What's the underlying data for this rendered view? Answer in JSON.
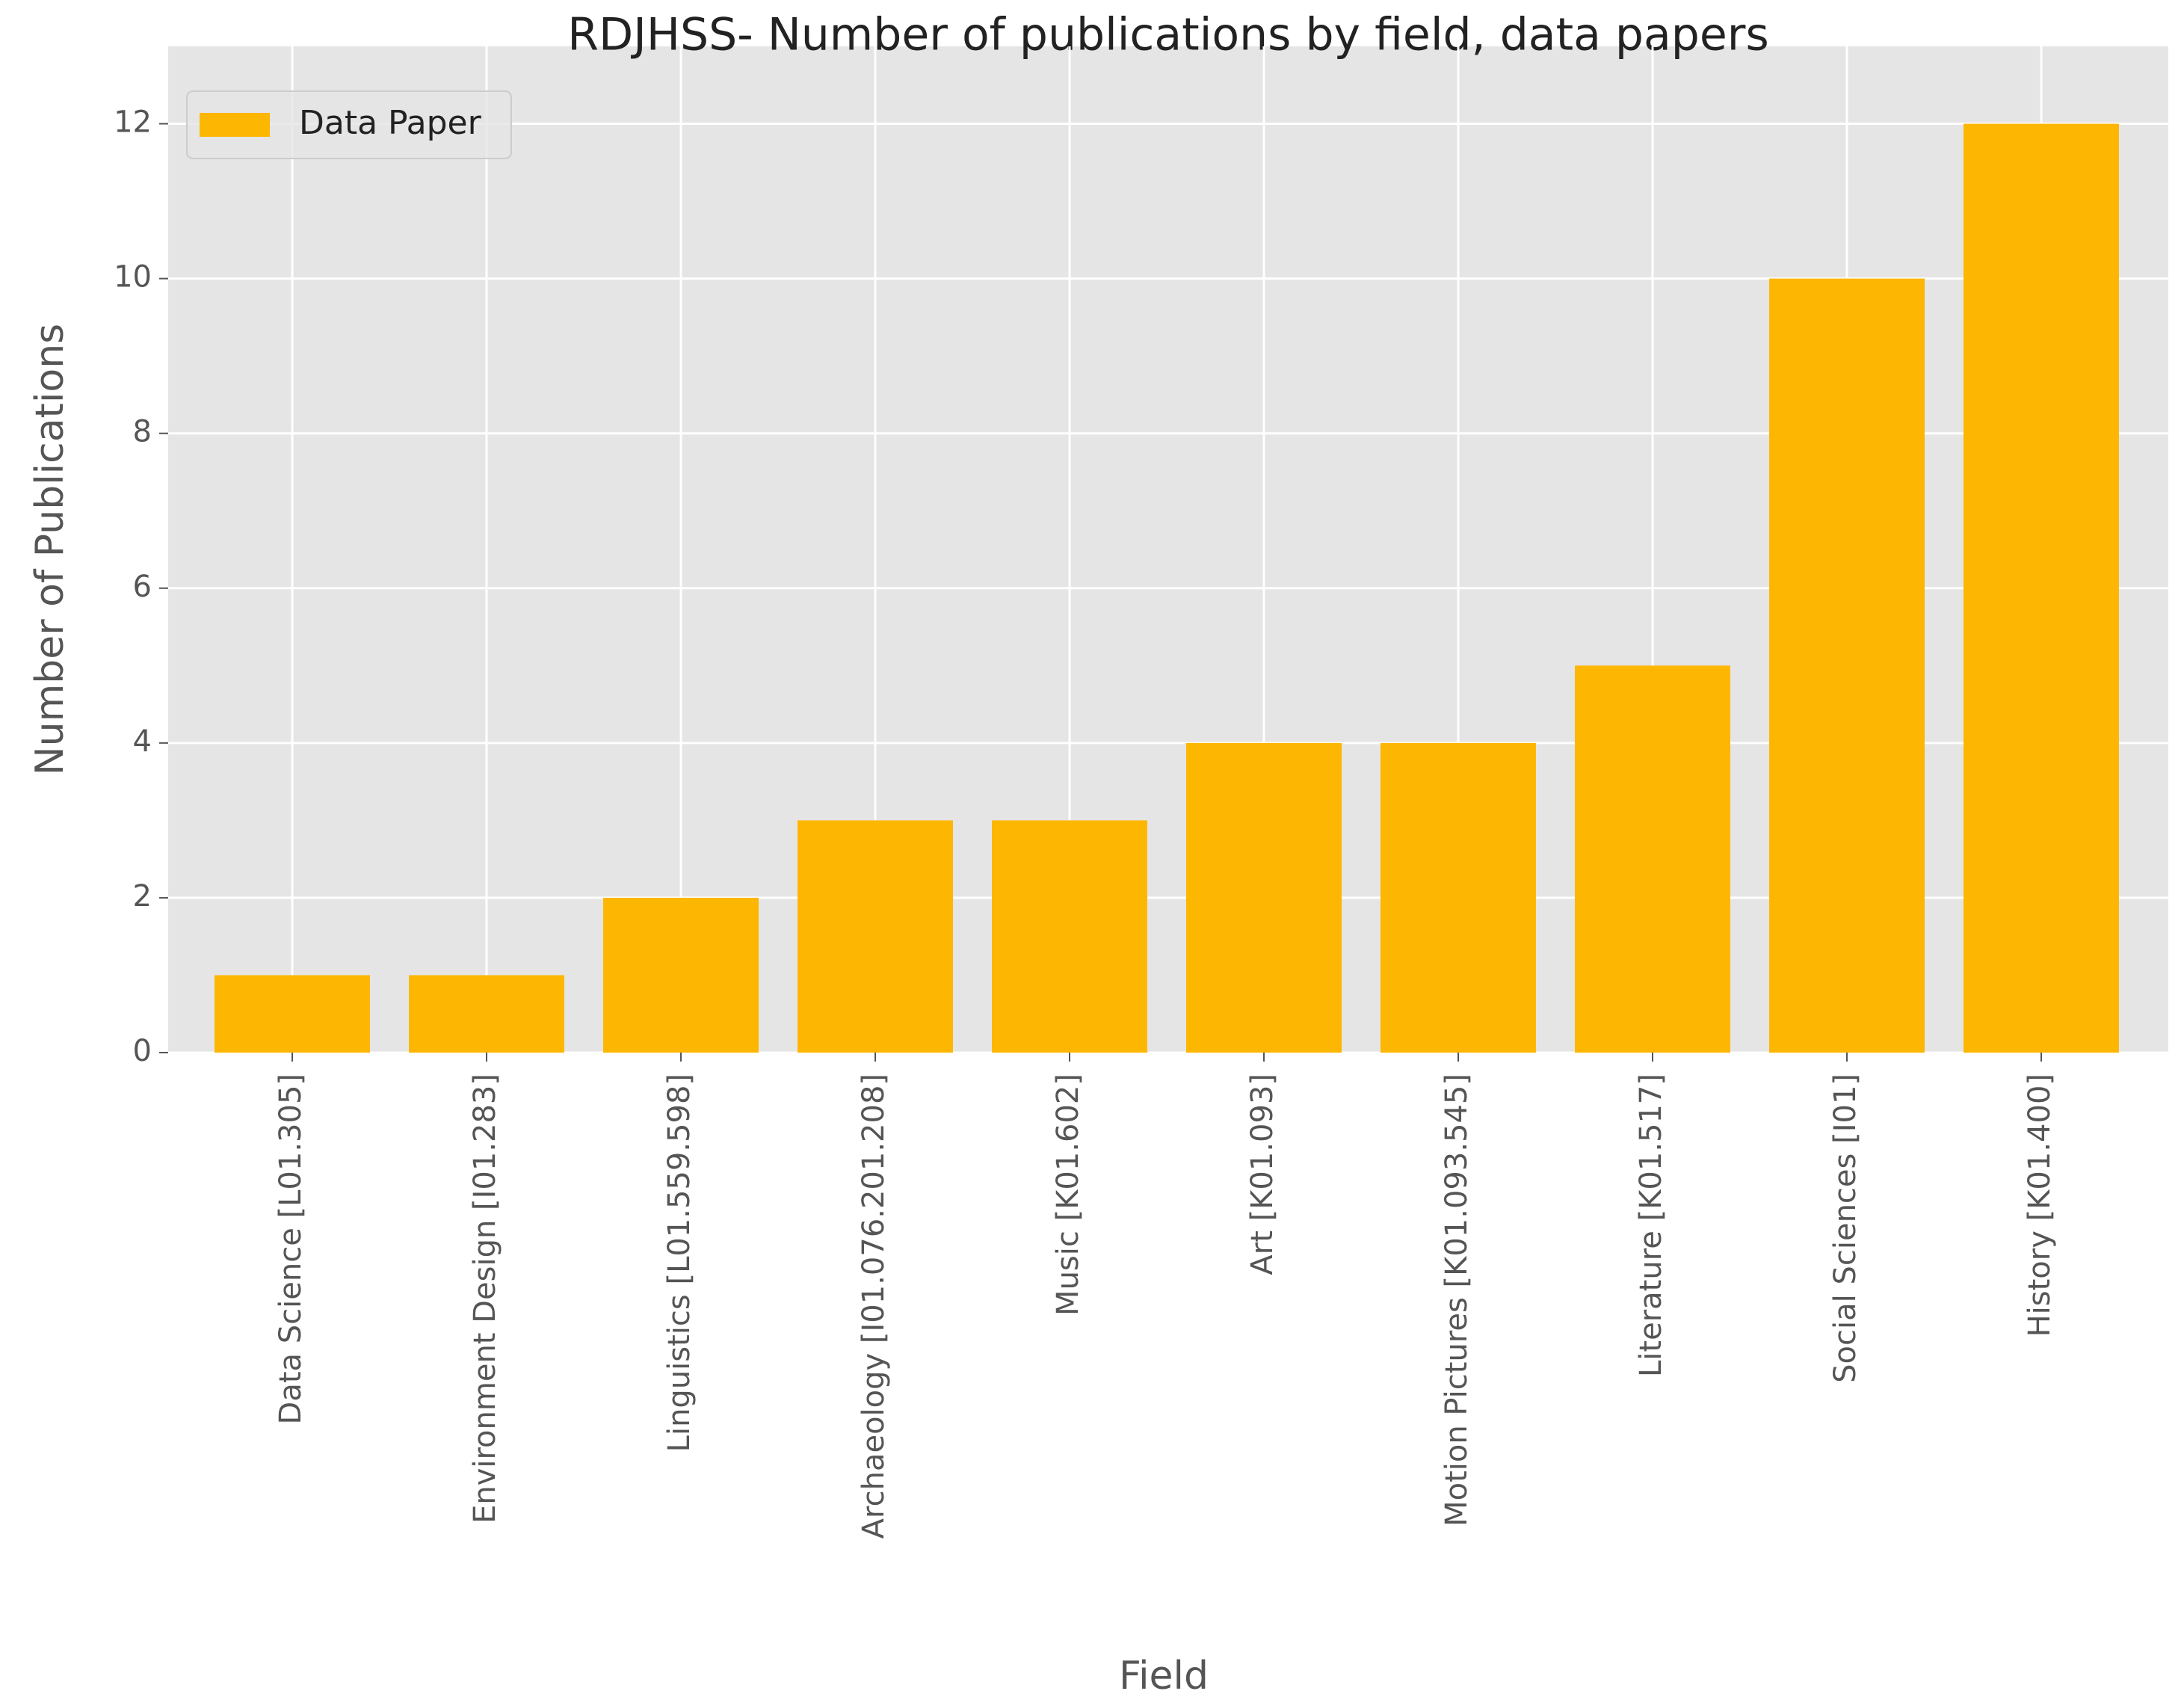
{
  "chart_data": {
    "type": "bar",
    "title": "RDJHSS- Number of publications by field, data papers",
    "x_label": "Field",
    "y_label": "Number of Publications",
    "categories": [
      "Data Science [L01.305]",
      "Environment Design [I01.283]",
      "Linguistics [L01.559.598]",
      "Archaeology [I01.076.201.208]",
      "Music [K01.602]",
      "Art [K01.093]",
      "Motion Pictures [K01.093.545]",
      "Literature [K01.517]",
      "Social Sciences [I01]",
      "History [K01.400]"
    ],
    "series": [
      {
        "name": "Data Paper",
        "color": "#fdb602",
        "values": [
          1,
          1,
          2,
          3,
          3,
          4,
          4,
          5,
          10,
          12
        ]
      }
    ],
    "ylim": [
      0,
      13
    ],
    "yticks": [
      0,
      2,
      4,
      6,
      8,
      10,
      12
    ],
    "grid": true,
    "legend": "upper left"
  }
}
